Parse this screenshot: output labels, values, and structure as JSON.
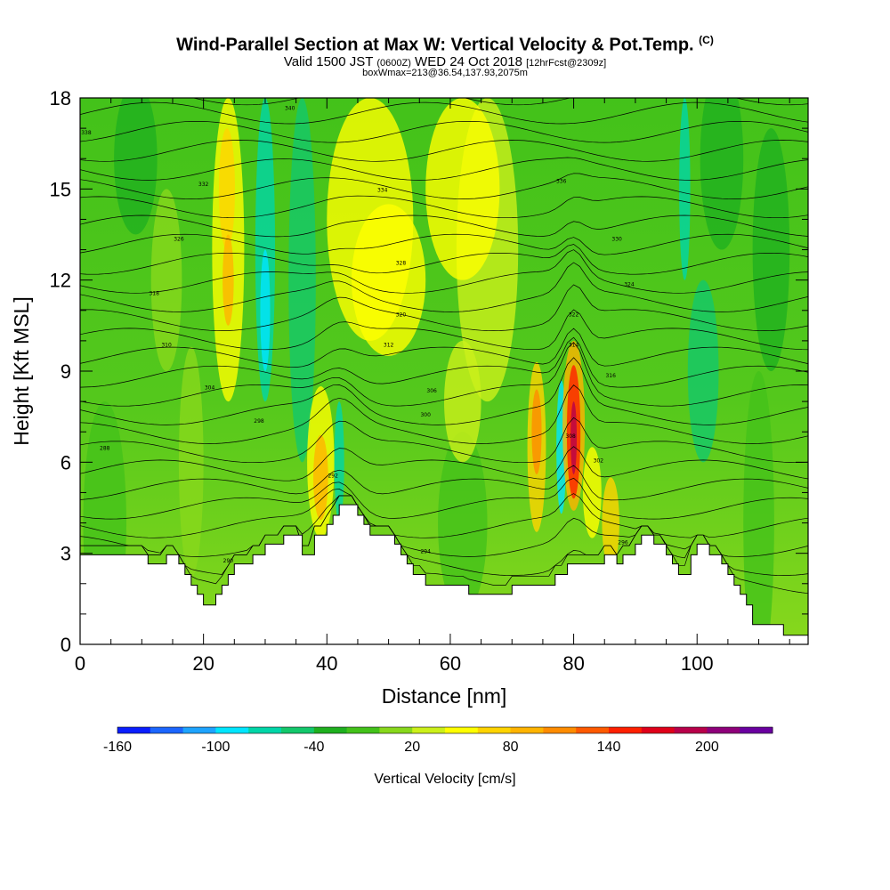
{
  "header": {
    "title": "Wind-Parallel Section at Max W: Vertical Velocity & Pot.Temp.",
    "title_mark": "(C)",
    "valid_prefix": "Valid 1500 JST",
    "valid_utc": "(0600Z)",
    "valid_date": "WED 24 Oct 2018",
    "forecast": "[12hrFcst@2309z]",
    "box_info": "boxWmax=213@36.54,137.93,2075m"
  },
  "chart_data": {
    "type": "heatmap",
    "xlabel": "Distance [nm]",
    "ylabel": "Height [Kft MSL]",
    "xlim": [
      0,
      118
    ],
    "ylim": [
      0,
      18
    ],
    "x_ticks": [
      "0",
      "20",
      "40",
      "60",
      "80",
      "100"
    ],
    "y_ticks": [
      "0",
      "3",
      "6",
      "9",
      "12",
      "15",
      "18"
    ],
    "colorbar": {
      "label": "Vertical Velocity [cm/s]",
      "tick_labels": [
        "-160",
        "-100",
        "-40",
        "20",
        "80",
        "140",
        "200"
      ],
      "colors": [
        "#0a1eff",
        "#1c66ff",
        "#1ea4ff",
        "#00e6ff",
        "#00d6a8",
        "#13c86b",
        "#1fb01f",
        "#43c21a",
        "#88d81c",
        "#ccf01a",
        "#ffff00",
        "#ffd400",
        "#ffb400",
        "#ff8c00",
        "#ff5a00",
        "#ff2000",
        "#e0001a",
        "#b8004a",
        "#8e007a",
        "#6a00a0"
      ]
    },
    "theta_contour_labels": [
      "288",
      "290",
      "292",
      "294",
      "296",
      "298",
      "300",
      "302",
      "304",
      "306",
      "308",
      "310",
      "312",
      "314",
      "316",
      "318",
      "320",
      "322",
      "324",
      "326",
      "328",
      "330",
      "332",
      "334",
      "336",
      "338",
      "340"
    ],
    "terrain_kft": [
      [
        0,
        2.95
      ],
      [
        11,
        2.95
      ],
      [
        11,
        2.65
      ],
      [
        14,
        2.65
      ],
      [
        14,
        2.95
      ],
      [
        16,
        2.95
      ],
      [
        16,
        2.65
      ],
      [
        17,
        2.65
      ],
      [
        17,
        2.3
      ],
      [
        18,
        2.3
      ],
      [
        18,
        1.95
      ],
      [
        19,
        1.95
      ],
      [
        19,
        1.65
      ],
      [
        20,
        1.65
      ],
      [
        20,
        1.3
      ],
      [
        22,
        1.3
      ],
      [
        22,
        1.65
      ],
      [
        23,
        1.65
      ],
      [
        23,
        1.95
      ],
      [
        24,
        1.95
      ],
      [
        24,
        2.3
      ],
      [
        25,
        2.3
      ],
      [
        25,
        2.65
      ],
      [
        28,
        2.65
      ],
      [
        28,
        2.95
      ],
      [
        30,
        2.95
      ],
      [
        30,
        3.3
      ],
      [
        33,
        3.3
      ],
      [
        33,
        3.6
      ],
      [
        36,
        3.6
      ],
      [
        36,
        2.95
      ],
      [
        38,
        2.95
      ],
      [
        38,
        3.6
      ],
      [
        40,
        3.6
      ],
      [
        40,
        3.95
      ],
      [
        41,
        3.95
      ],
      [
        41,
        4.25
      ],
      [
        42,
        4.25
      ],
      [
        42,
        4.6
      ],
      [
        45,
        4.6
      ],
      [
        45,
        4.25
      ],
      [
        46,
        4.25
      ],
      [
        46,
        3.95
      ],
      [
        47,
        3.95
      ],
      [
        47,
        3.6
      ],
      [
        51,
        3.6
      ],
      [
        51,
        3.3
      ],
      [
        52,
        3.3
      ],
      [
        52,
        2.95
      ],
      [
        53,
        2.95
      ],
      [
        53,
        2.65
      ],
      [
        54,
        2.65
      ],
      [
        54,
        2.3
      ],
      [
        56,
        2.3
      ],
      [
        56,
        1.95
      ],
      [
        63,
        1.95
      ],
      [
        63,
        1.65
      ],
      [
        70,
        1.65
      ],
      [
        70,
        1.95
      ],
      [
        77,
        1.95
      ],
      [
        77,
        2.3
      ],
      [
        79,
        2.3
      ],
      [
        79,
        2.65
      ],
      [
        85,
        2.65
      ],
      [
        85,
        2.95
      ],
      [
        87,
        2.95
      ],
      [
        87,
        2.65
      ],
      [
        88,
        2.65
      ],
      [
        88,
        2.95
      ],
      [
        90,
        2.95
      ],
      [
        90,
        3.3
      ],
      [
        91,
        3.3
      ],
      [
        91,
        3.6
      ],
      [
        93,
        3.6
      ],
      [
        93,
        3.3
      ],
      [
        95,
        3.3
      ],
      [
        95,
        2.95
      ],
      [
        96,
        2.95
      ],
      [
        96,
        2.65
      ],
      [
        97,
        2.65
      ],
      [
        97,
        2.3
      ],
      [
        99,
        2.3
      ],
      [
        99,
        2.95
      ],
      [
        100,
        2.95
      ],
      [
        100,
        3.3
      ],
      [
        102,
        3.3
      ],
      [
        102,
        2.95
      ],
      [
        104,
        2.95
      ],
      [
        104,
        2.65
      ],
      [
        105,
        2.65
      ],
      [
        105,
        2.3
      ],
      [
        106,
        2.3
      ],
      [
        106,
        1.95
      ],
      [
        107,
        1.95
      ],
      [
        107,
        1.65
      ],
      [
        108,
        1.65
      ],
      [
        108,
        1.3
      ],
      [
        109,
        1.3
      ],
      [
        109,
        0.65
      ],
      [
        114,
        0.65
      ],
      [
        114,
        0.3
      ],
      [
        118,
        0.3
      ]
    ]
  }
}
